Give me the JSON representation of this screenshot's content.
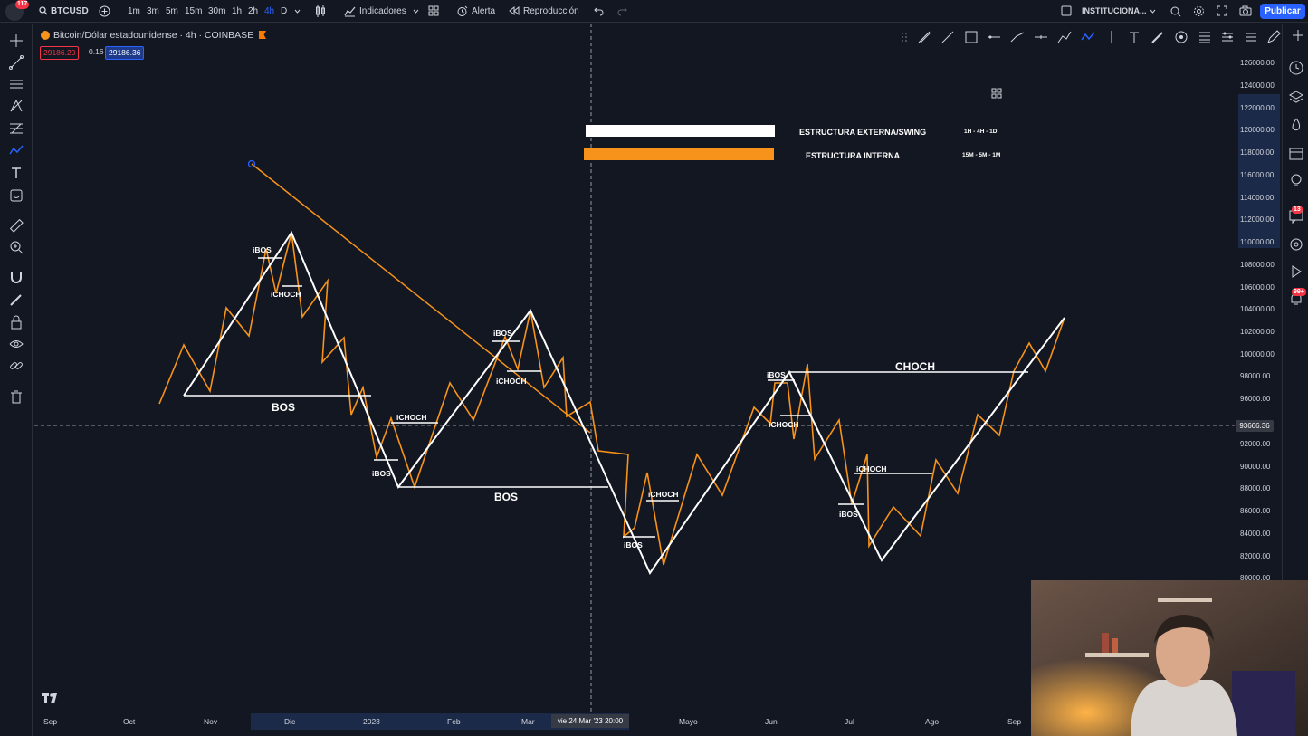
{
  "topbar": {
    "notification_count": "117",
    "symbol": "BTCUSD",
    "intervals": [
      "1m",
      "3m",
      "5m",
      "15m",
      "30m",
      "1h",
      "2h",
      "4h",
      "D"
    ],
    "active_interval": "4h",
    "indicators_label": "Indicadores",
    "alert_label": "Alerta",
    "replay_label": "Reproducción",
    "layout_name": "INSTITUCIONA...",
    "publish_label": "Publicar"
  },
  "legend": {
    "title": "Bitcoin/Dólar estadounidense · 4h · COINBASE",
    "sell_price": "29186.20",
    "spread": "0.16",
    "buy_price": "29186.36"
  },
  "right_badges": {
    "alerts": "13",
    "notifications": "99+"
  },
  "y_axis": {
    "labels": [
      "126000.00",
      "124000.00",
      "122000.00",
      "120000.00",
      "118000.00",
      "116000.00",
      "114000.00",
      "112000.00",
      "110000.00",
      "108000.00",
      "106000.00",
      "104000.00",
      "102000.00",
      "100000.00",
      "98000.00",
      "96000.00",
      "92000.00",
      "90000.00",
      "88000.00",
      "86000.00",
      "84000.00",
      "82000.00",
      "80000.00"
    ],
    "current_price": "93666.36"
  },
  "x_axis": {
    "labels": [
      "Sep",
      "Oct",
      "Nov",
      "Dic",
      "2023",
      "Feb",
      "Mar",
      "Mayo",
      "Jun",
      "Jul",
      "Ago",
      "Sep"
    ],
    "crosshair_label": "vie 24 Mar '23   20:00"
  },
  "drawing_legend": {
    "external": {
      "label": "ESTRUCTURA EXTERNA/SWING",
      "timeframes": "1H - 4H - 1D",
      "color": "#ffffff"
    },
    "internal": {
      "label": "ESTRUCTURA INTERNA",
      "timeframes": "15M - 5M - 1M",
      "color": "#f7931a"
    }
  },
  "chart_labels": {
    "ibos1": "iBOS",
    "ichoch1": "iCHOCH",
    "bos1": "BOS",
    "ichoch2": "iCHOCH",
    "ibos2": "iBOS",
    "bos2": "BOS",
    "ibos3": "iBOS",
    "ichoch3": "iCHOCH",
    "ichoch4": "iCHOCH",
    "ibos4": "iBOS",
    "ibos5": "iBOS",
    "ichoch5": "iCHOCH",
    "choch": "CHOCH",
    "ichoch6": "iCHOCH",
    "ibos6": "iBOS"
  },
  "colors": {
    "background": "#131722",
    "accent": "#2962ff",
    "orange": "#f7931a",
    "white": "#ffffff"
  }
}
